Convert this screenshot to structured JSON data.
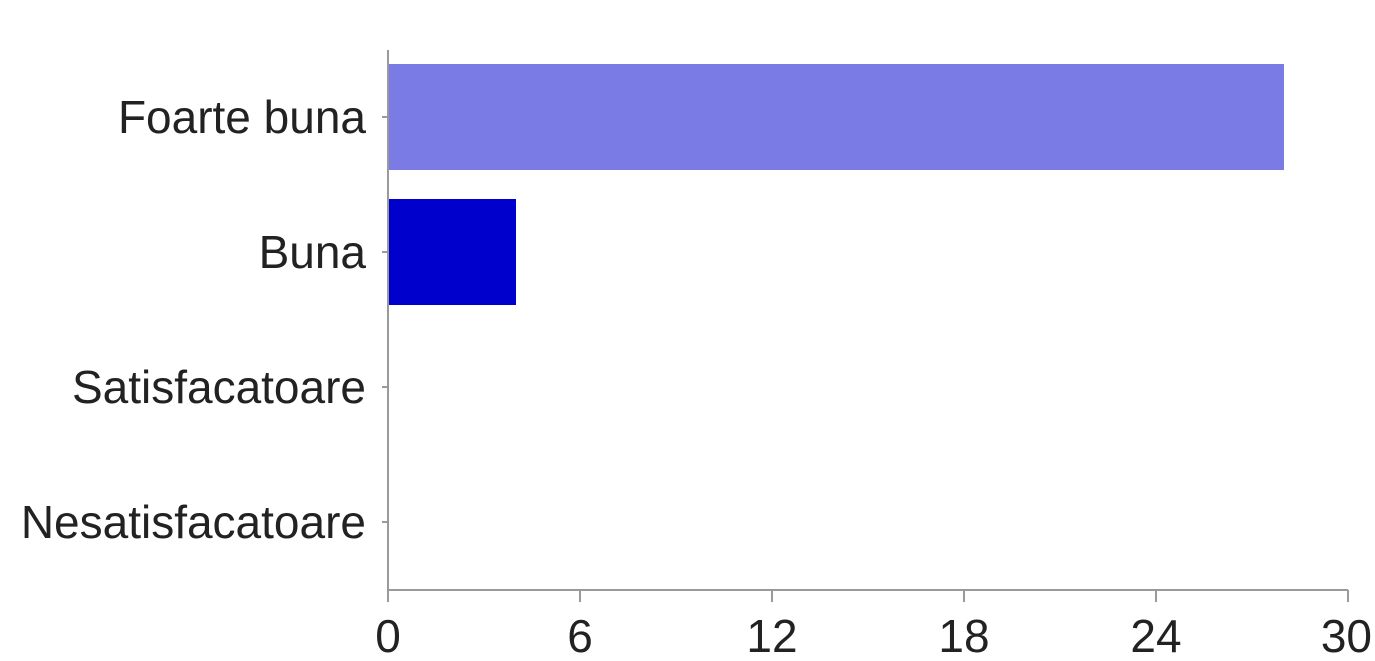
{
  "chart_data": {
    "type": "bar",
    "orientation": "horizontal",
    "categories": [
      "Foarte buna",
      "Buna",
      "Satisfacatoare",
      "Nesatisfacatoare"
    ],
    "values": [
      28,
      4,
      0,
      0
    ],
    "colors": [
      "#7b7be6",
      "#0000cc",
      "#7b7be6",
      "#0000cc"
    ],
    "xlim": [
      0,
      30
    ],
    "xticks": [
      "0",
      "6",
      "12",
      "18",
      "24",
      "30"
    ],
    "title": "",
    "xlabel": "",
    "ylabel": "",
    "grid": false,
    "legend": "none"
  }
}
